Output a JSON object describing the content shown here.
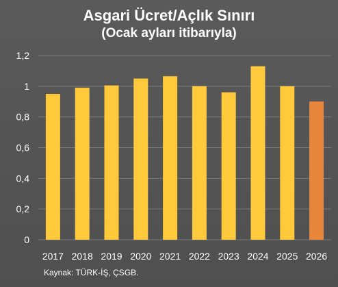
{
  "chart_data": {
    "type": "bar",
    "title": "Asgari Ücret/Açlık Sınırı",
    "subtitle": "(Ocak ayları itibarıyla)",
    "categories": [
      "2017",
      "2018",
      "2019",
      "2020",
      "2021",
      "2022",
      "2023",
      "2024",
      "2025",
      "2026"
    ],
    "values": [
      0.95,
      0.99,
      1.005,
      1.05,
      1.065,
      1.0,
      0.96,
      1.13,
      1.0,
      0.9
    ],
    "bar_colors": [
      "#ffc93c",
      "#ffc93c",
      "#ffc93c",
      "#ffc93c",
      "#ffc93c",
      "#ffc93c",
      "#ffc93c",
      "#ffc93c",
      "#ffc93c",
      "#e8863c"
    ],
    "ylim": [
      0,
      1.2
    ],
    "yticks": [
      "0",
      "0,2",
      "0,4",
      "0,6",
      "0,8",
      "1",
      "1,2"
    ],
    "grid": true,
    "xlabel": "",
    "ylabel": "",
    "source": "Kaynak: TÜRK-İŞ, ÇSGB."
  },
  "colors": {
    "background": "#595959",
    "bar": "#ffc93c",
    "highlight_bar": "#e8863c",
    "grid": "#7a7a7a",
    "text": "#ffffff"
  }
}
